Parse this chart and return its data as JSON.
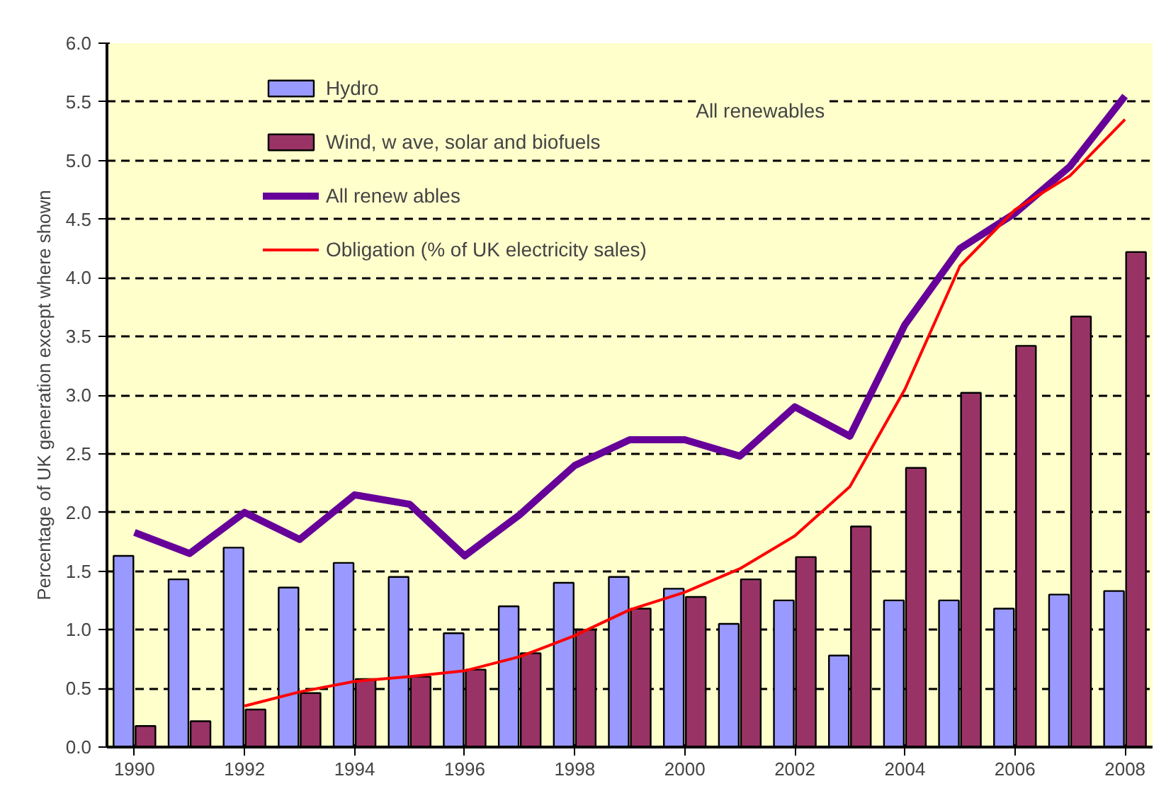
{
  "chart_data": {
    "type": "bar",
    "ylabel": "Percentage of UK generation except where shown",
    "x": [
      1990,
      1991,
      1992,
      1993,
      1994,
      1995,
      1996,
      1997,
      1998,
      1999,
      2000,
      2001,
      2002,
      2003,
      2004,
      2005,
      2006,
      2007,
      2008
    ],
    "xlim": [
      1989.5,
      2008.5
    ],
    "xticks": [
      1990,
      1992,
      1994,
      1996,
      1998,
      2000,
      2002,
      2004,
      2006,
      2008
    ],
    "ylim": [
      0,
      6
    ],
    "yticks": [
      {
        "value": 0,
        "label": "0.0"
      },
      {
        "value": 0.5,
        "label": "0.5"
      },
      {
        "value": 1,
        "label": "1.0"
      },
      {
        "value": 1.5,
        "label": "1.5"
      },
      {
        "value": 2,
        "label": "2.0"
      },
      {
        "value": 2.5,
        "label": "2.5"
      },
      {
        "value": 3,
        "label": "3.0"
      },
      {
        "value": 3.5,
        "label": "3.5"
      },
      {
        "value": 4,
        "label": "4.0"
      },
      {
        "value": 4.5,
        "label": "4.5"
      },
      {
        "value": 5,
        "label": "5.0"
      },
      {
        "value": 5.5,
        "label": "5.5"
      },
      {
        "value": 6,
        "label": "6.0"
      }
    ],
    "grid": "y",
    "legend": "top left",
    "line_style": "solid",
    "marker": "none",
    "annotations": [
      "All renewables"
    ],
    "series": [
      {
        "name": "Hydro",
        "color": "#9999ff",
        "values": [
          1.63,
          1.43,
          1.7,
          1.36,
          1.57,
          1.45,
          0.97,
          1.2,
          1.4,
          1.45,
          1.35,
          1.05,
          1.25,
          0.78,
          1.25,
          1.25,
          1.18,
          1.3,
          1.33
        ]
      },
      {
        "name": "Wind, w ave, solar and biofuels",
        "color": "#993366",
        "values": [
          0.18,
          0.22,
          0.32,
          0.46,
          0.58,
          0.6,
          0.66,
          0.8,
          1.0,
          1.18,
          1.28,
          1.43,
          1.62,
          1.88,
          2.38,
          3.02,
          3.42,
          3.67,
          4.22
        ]
      },
      {
        "name": "All renew ables",
        "type": "line",
        "color": "#660099",
        "values": [
          1.83,
          1.65,
          2.0,
          1.77,
          2.15,
          2.07,
          1.63,
          1.98,
          2.4,
          2.62,
          2.62,
          2.48,
          2.9,
          2.65,
          3.6,
          4.25,
          4.55,
          4.95,
          5.55
        ]
      },
      {
        "name": "Obligation (% of UK electricity sales)",
        "type": "line",
        "color": "#ff0000",
        "values": [
          null,
          null,
          0.35,
          0.47,
          0.56,
          0.6,
          0.65,
          0.77,
          0.95,
          1.17,
          1.32,
          1.52,
          1.8,
          2.22,
          3.05,
          4.1,
          4.58,
          4.87,
          5.35
        ]
      }
    ]
  }
}
